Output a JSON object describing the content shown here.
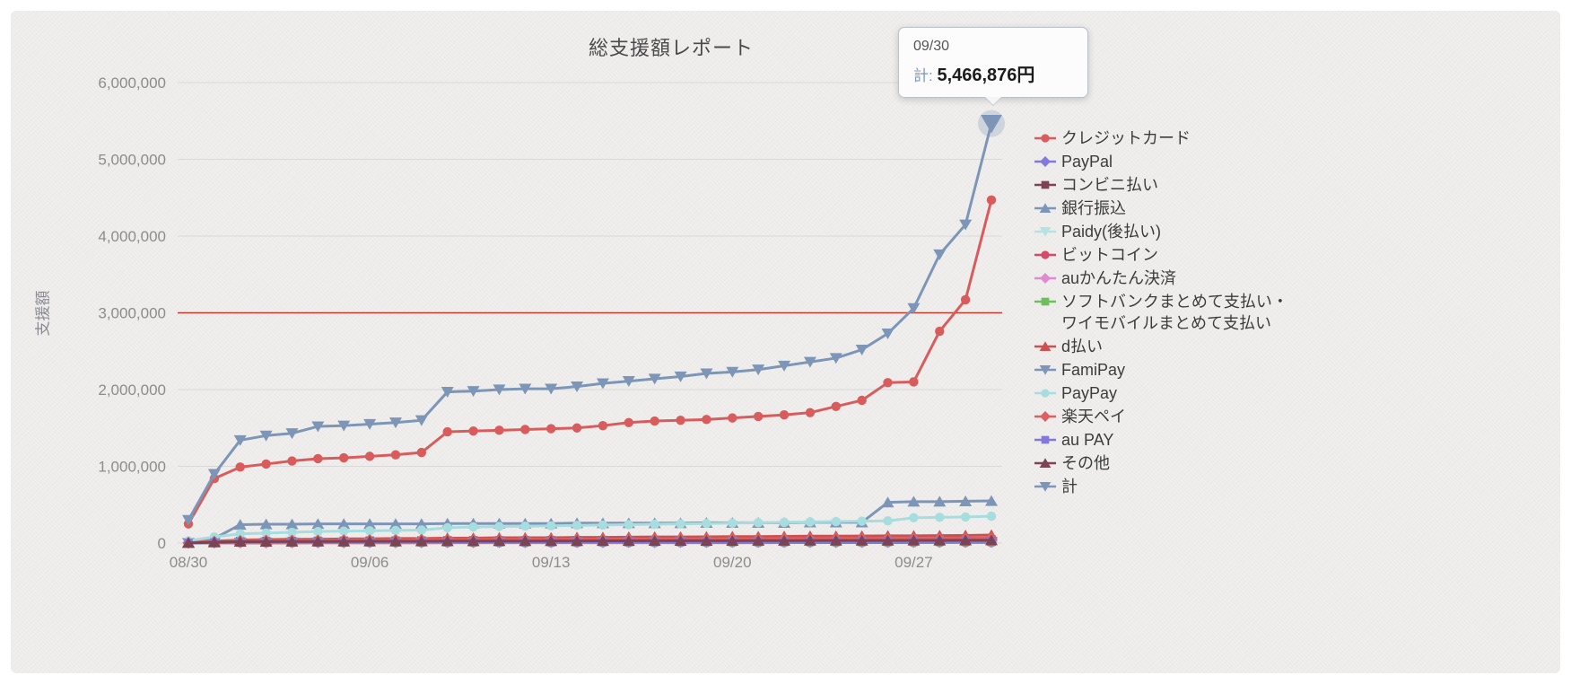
{
  "chart_data": {
    "type": "line",
    "title": "総支援額レポート",
    "xlabel": "",
    "ylabel": "支援額",
    "ylim": [
      0,
      6000000
    ],
    "grid": true,
    "legend_position": "right",
    "background_color": "#edecea",
    "grid_color": "#d9d9d9",
    "y_ticks": [
      {
        "value": 0,
        "label": "0"
      },
      {
        "value": 1000000,
        "label": "1,000,000"
      },
      {
        "value": 2000000,
        "label": "2,000,000"
      },
      {
        "value": 3000000,
        "label": "3,000,000"
      },
      {
        "value": 4000000,
        "label": "4,000,000"
      },
      {
        "value": 5000000,
        "label": "5,000,000"
      },
      {
        "value": 6000000,
        "label": "6,000,000"
      }
    ],
    "x_ticks": [
      {
        "index": 0,
        "label": "08/30"
      },
      {
        "index": 7,
        "label": "09/06"
      },
      {
        "index": 14,
        "label": "09/13"
      },
      {
        "index": 21,
        "label": "09/20"
      },
      {
        "index": 28,
        "label": "09/27"
      }
    ],
    "reference_line": {
      "value": 3000000,
      "color": "#c23b2e"
    },
    "x": [
      "08/30",
      "08/31",
      "09/01",
      "09/02",
      "09/03",
      "09/04",
      "09/05",
      "09/06",
      "09/07",
      "09/08",
      "09/09",
      "09/10",
      "09/11",
      "09/12",
      "09/13",
      "09/14",
      "09/15",
      "09/16",
      "09/17",
      "09/18",
      "09/19",
      "09/20",
      "09/21",
      "09/22",
      "09/23",
      "09/24",
      "09/25",
      "09/26",
      "09/27",
      "09/28",
      "09/29",
      "09/30"
    ],
    "series": [
      {
        "name": "クレジットカード",
        "color": "#d95c5c",
        "marker": "circle",
        "values": [
          250000,
          840000,
          990000,
          1030000,
          1070000,
          1100000,
          1110000,
          1130000,
          1150000,
          1180000,
          1450000,
          1460000,
          1470000,
          1480000,
          1490000,
          1500000,
          1530000,
          1570000,
          1590000,
          1600000,
          1610000,
          1630000,
          1650000,
          1670000,
          1700000,
          1780000,
          1860000,
          2090000,
          2100000,
          2760000,
          3170000,
          4470000
        ]
      },
      {
        "name": "PayPal",
        "color": "#8278dd",
        "marker": "diamond",
        "values": [
          2000,
          8000,
          12000,
          13000,
          14000,
          15000,
          15000,
          16000,
          16000,
          17000,
          18000,
          18000,
          19000,
          19000,
          20000,
          20000,
          21000,
          21000,
          22000,
          22000,
          23000,
          23000,
          24000,
          24000,
          25000,
          25000,
          26000,
          26000,
          27000,
          27000,
          28000,
          28000
        ]
      },
      {
        "name": "コンビニ払い",
        "color": "#7d4355",
        "marker": "square",
        "values": [
          3000,
          15000,
          25000,
          26000,
          27000,
          28000,
          29000,
          30000,
          30000,
          31000,
          33000,
          33000,
          34000,
          34000,
          35000,
          35000,
          36000,
          36000,
          37000,
          37000,
          38000,
          38000,
          39000,
          39000,
          40000,
          40000,
          41000,
          41000,
          42000,
          42000,
          43000,
          44000
        ]
      },
      {
        "name": "銀行振込",
        "color": "#7d96b8",
        "marker": "triangle",
        "values": [
          10000,
          60000,
          240000,
          245000,
          245000,
          250000,
          250000,
          250000,
          250000,
          250000,
          255000,
          255000,
          255000,
          255000,
          255000,
          260000,
          260000,
          260000,
          260000,
          260000,
          265000,
          265000,
          265000,
          265000,
          270000,
          270000,
          270000,
          530000,
          540000,
          540000,
          545000,
          550000
        ]
      },
      {
        "name": "Paidy(後払い)",
        "color": "#b7e2e4",
        "marker": "triangle-down",
        "values": [
          1000,
          5000,
          8000,
          9000,
          10000,
          10000,
          11000,
          11000,
          12000,
          12000,
          13000,
          13000,
          14000,
          14000,
          14000,
          15000,
          15000,
          15000,
          16000,
          16000,
          16000,
          17000,
          17000,
          17000,
          18000,
          18000,
          18000,
          19000,
          19000,
          19000,
          20000,
          20000
        ]
      },
      {
        "name": "ビットコイン",
        "color": "#d44a68",
        "marker": "circle",
        "values": [
          0,
          1000,
          2000,
          2000,
          2000,
          3000,
          3000,
          3000,
          3000,
          3000,
          4000,
          4000,
          4000,
          4000,
          4000,
          4000,
          5000,
          5000,
          5000,
          5000,
          5000,
          5000,
          5000,
          6000,
          6000,
          6000,
          6000,
          6000,
          6000,
          7000,
          7000,
          7000
        ]
      },
      {
        "name": "auかんたん決済",
        "color": "#e08ad0",
        "marker": "diamond",
        "values": [
          1000,
          4000,
          6000,
          6000,
          7000,
          7000,
          7000,
          8000,
          8000,
          8000,
          9000,
          9000,
          9000,
          9000,
          10000,
          10000,
          10000,
          10000,
          10000,
          11000,
          11000,
          11000,
          11000,
          11000,
          12000,
          12000,
          12000,
          12000,
          12000,
          13000,
          13000,
          13000
        ]
      },
      {
        "name": "ソフトバンクまとめて支払い・ワイモバイルまとめて支払い",
        "color": "#6cbf5a",
        "marker": "square",
        "values": [
          1000,
          5000,
          8000,
          8000,
          9000,
          9000,
          10000,
          10000,
          10000,
          11000,
          12000,
          12000,
          12000,
          13000,
          13000,
          13000,
          14000,
          14000,
          14000,
          15000,
          15000,
          15000,
          15000,
          16000,
          16000,
          16000,
          16000,
          17000,
          17000,
          17000,
          18000,
          18000
        ]
      },
      {
        "name": "d払い",
        "color": "#ce4f4f",
        "marker": "triangle",
        "values": [
          5000,
          25000,
          40000,
          45000,
          50000,
          50000,
          55000,
          55000,
          60000,
          60000,
          65000,
          65000,
          70000,
          70000,
          70000,
          75000,
          75000,
          78000,
          80000,
          80000,
          82000,
          85000,
          85000,
          88000,
          90000,
          90000,
          92000,
          95000,
          95000,
          98000,
          100000,
          105000
        ]
      },
      {
        "name": "FamiPay",
        "color": "#7d96b8",
        "marker": "triangle-down",
        "values": [
          500,
          3000,
          5000,
          5000,
          6000,
          6000,
          6000,
          7000,
          7000,
          7000,
          8000,
          8000,
          8000,
          8000,
          9000,
          9000,
          9000,
          9000,
          9000,
          10000,
          10000,
          10000,
          10000,
          10000,
          11000,
          11000,
          11000,
          11000,
          11000,
          12000,
          12000,
          12000
        ]
      },
      {
        "name": "PayPay",
        "color": "#a8dde0",
        "marker": "circle",
        "values": [
          30000,
          80000,
          120000,
          130000,
          140000,
          150000,
          155000,
          160000,
          165000,
          170000,
          200000,
          210000,
          215000,
          220000,
          225000,
          230000,
          235000,
          240000,
          245000,
          250000,
          255000,
          260000,
          265000,
          270000,
          275000,
          280000,
          285000,
          290000,
          330000,
          335000,
          340000,
          350000
        ]
      },
      {
        "name": "楽天ペイ",
        "color": "#de5f5f",
        "marker": "diamond",
        "values": [
          5000,
          20000,
          30000,
          32000,
          34000,
          36000,
          38000,
          40000,
          40000,
          42000,
          45000,
          45000,
          46000,
          48000,
          48000,
          50000,
          50000,
          52000,
          52000,
          54000,
          55000,
          55000,
          56000,
          58000,
          58000,
          60000,
          60000,
          62000,
          62000,
          64000,
          65000,
          68000
        ]
      },
      {
        "name": "au PAY",
        "color": "#8278dd",
        "marker": "square",
        "values": [
          1000,
          6000,
          10000,
          11000,
          12000,
          12000,
          13000,
          13000,
          14000,
          14000,
          15000,
          15000,
          16000,
          16000,
          16000,
          17000,
          17000,
          17000,
          18000,
          18000,
          18000,
          19000,
          19000,
          19000,
          20000,
          20000,
          20000,
          21000,
          21000,
          21000,
          22000,
          22000
        ]
      },
      {
        "name": "その他",
        "color": "#7d4355",
        "marker": "triangle",
        "values": [
          2000,
          10000,
          18000,
          19000,
          20000,
          21000,
          22000,
          23000,
          23000,
          24000,
          26000,
          26000,
          27000,
          27000,
          28000,
          28000,
          29000,
          29000,
          30000,
          30000,
          31000,
          31000,
          32000,
          32000,
          33000,
          33000,
          34000,
          34000,
          35000,
          35000,
          36000,
          37000
        ]
      },
      {
        "name": "計",
        "color": "#7d96b8",
        "marker": "triangle-down",
        "values": [
          300000,
          900000,
          1340000,
          1400000,
          1430000,
          1520000,
          1530000,
          1550000,
          1570000,
          1600000,
          1970000,
          1980000,
          2000000,
          2010000,
          2010000,
          2040000,
          2080000,
          2110000,
          2140000,
          2170000,
          2210000,
          2230000,
          2260000,
          2310000,
          2360000,
          2410000,
          2520000,
          2730000,
          3060000,
          3760000,
          4150000,
          5466876
        ]
      }
    ],
    "highlight": {
      "series": "計",
      "index": 31
    },
    "tooltip": {
      "date": "09/30",
      "series_label": "計",
      "separator": ": ",
      "value_text": "5,466,876円",
      "value": 5466876
    }
  }
}
